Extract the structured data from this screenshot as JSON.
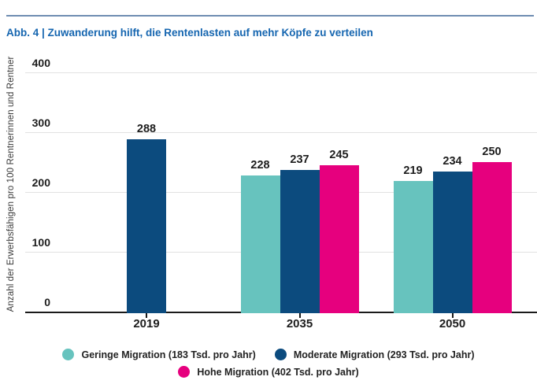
{
  "title": "Abb. 4 | Zuwanderung hilft, die Rentenlasten auf mehr Köpfe zu verteilen",
  "colors": {
    "title_blue": "#1666b0",
    "top_rule": "#6e8db2",
    "gridline": "#e2e2e2",
    "axis": "#1a1a1a",
    "teal": "#67c3be",
    "dark_blue": "#0c4b7e",
    "pink": "#e6007e"
  },
  "chart_data": {
    "type": "bar",
    "title": "Abb. 4 | Zuwanderung hilft, die Rentenlasten auf mehr Köpfe zu verteilen",
    "xlabel": "",
    "ylabel": "Anzahl der Erwerbsfähigen pro 100 Rentnerinnen und Rentner",
    "categories": [
      "2019",
      "2035",
      "2050"
    ],
    "series": [
      {
        "name": "Geringe Migration (183 Tsd. pro Jahr)",
        "color": "#67c3be",
        "values": [
          null,
          228,
          219
        ]
      },
      {
        "name": "Moderate Migration (293 Tsd. pro Jahr)",
        "color": "#0c4b7e",
        "values": [
          288,
          237,
          234
        ]
      },
      {
        "name": "Hohe Migration (402 Tsd. pro Jahr)",
        "color": "#e6007e",
        "values": [
          null,
          245,
          250
        ]
      }
    ],
    "ylim": [
      0,
      400
    ],
    "yticks": [
      0,
      100,
      200,
      300,
      400
    ],
    "grid": true,
    "value_labels": true,
    "legend_position": "bottom"
  }
}
